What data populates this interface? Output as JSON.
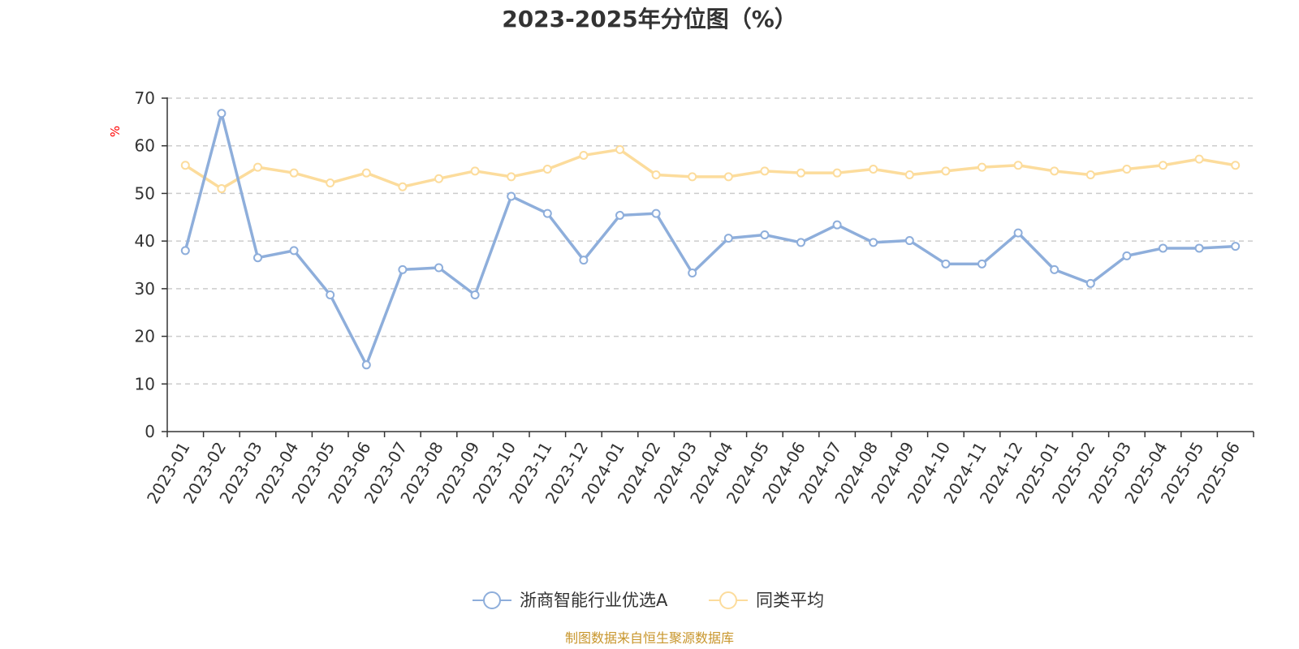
{
  "chart_data": {
    "type": "line",
    "title": "2023-2025年分位图（%）",
    "ylabel": "%",
    "xlabel": "",
    "ylim": [
      0,
      70
    ],
    "yticks": [
      0,
      10,
      20,
      30,
      40,
      50,
      60,
      70
    ],
    "grid": true,
    "legend_position": "bottom-center",
    "categories": [
      "2023-01",
      "2023-02",
      "2023-03",
      "2023-04",
      "2023-05",
      "2023-06",
      "2023-07",
      "2023-08",
      "2023-09",
      "2023-10",
      "2023-11",
      "2023-12",
      "2024-01",
      "2024-02",
      "2024-03",
      "2024-04",
      "2024-05",
      "2024-06",
      "2024-07",
      "2024-08",
      "2024-09",
      "2024-10",
      "2024-11",
      "2024-12",
      "2025-01",
      "2025-02",
      "2025-03",
      "2025-04",
      "2025-05",
      "2025-06"
    ],
    "series": [
      {
        "name": "浙商智能行业优选A",
        "color": "#8eaedb",
        "values": [
          38.0,
          66.8,
          36.5,
          38.0,
          28.7,
          14.0,
          34.0,
          34.4,
          28.7,
          49.4,
          45.8,
          36.0,
          45.4,
          45.8,
          33.3,
          40.6,
          41.3,
          39.7,
          43.4,
          39.7,
          40.1,
          35.2,
          35.2,
          41.7,
          34.0,
          31.1,
          36.9,
          38.5,
          38.5,
          38.9
        ]
      },
      {
        "name": "同类平均",
        "color": "#fcdc9c",
        "values": [
          55.9,
          51.0,
          55.5,
          54.3,
          52.2,
          54.3,
          51.4,
          53.1,
          54.7,
          53.5,
          55.1,
          58.0,
          59.2,
          53.9,
          53.5,
          53.5,
          54.7,
          54.3,
          54.3,
          55.1,
          53.9,
          54.7,
          55.5,
          55.9,
          54.7,
          53.9,
          55.1,
          55.9,
          57.2,
          55.9
        ]
      }
    ]
  },
  "source_note": "制图数据来自恒生聚源数据库"
}
